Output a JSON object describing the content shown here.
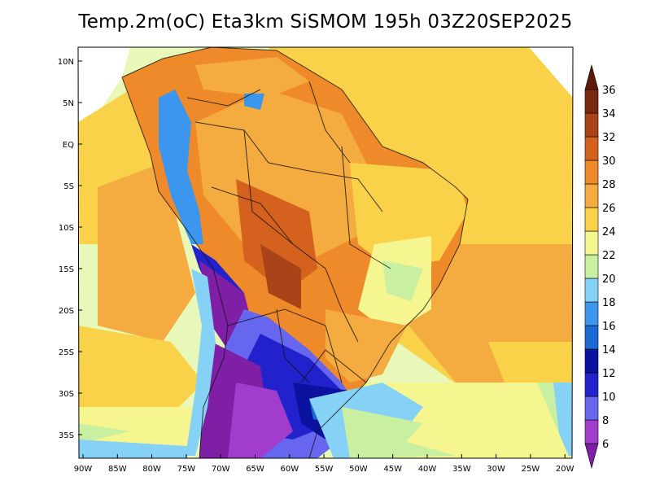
{
  "title": "Temp.2m(oC) Eta3km SiSMOM 195h 03Z20SEP2025",
  "lat_labels": [
    "10N",
    "5N",
    "EQ",
    "5S",
    "10S",
    "15S",
    "20S",
    "25S",
    "30S",
    "35S"
  ],
  "lon_labels": [
    "90W",
    "85W",
    "80W",
    "75W",
    "70W",
    "65W",
    "60W",
    "55W",
    "50W",
    "45W",
    "40W",
    "35W",
    "30W",
    "25W",
    "20W"
  ],
  "colorbar": {
    "levels": [
      "6",
      "8",
      "10",
      "12",
      "14",
      "16",
      "18",
      "20",
      "22",
      "24",
      "26",
      "28",
      "30",
      "32",
      "34",
      "36"
    ],
    "colors": [
      "#7e1fa6",
      "#a23ccc",
      "#6666ee",
      "#2222cc",
      "#0c12a0",
      "#1a6ad6",
      "#3c96ee",
      "#86d2f6",
      "#c8f0a0",
      "#f6f690",
      "#fad24a",
      "#f4ac40",
      "#ee8a2a",
      "#d4621e",
      "#a84418",
      "#7a2a10",
      "#5c1a08"
    ]
  },
  "legend_units": "oC"
}
